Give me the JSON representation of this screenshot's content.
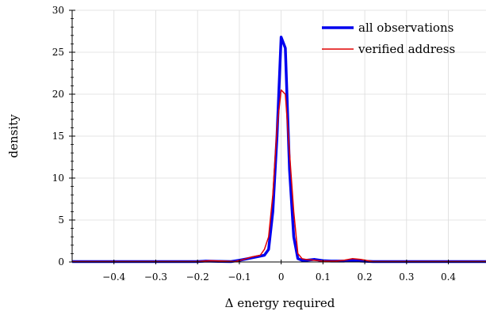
{
  "chart_data": {
    "type": "line",
    "xlabel": "Δ energy required",
    "ylabel": "density",
    "xlim": [
      -0.5,
      0.49
    ],
    "ylim": [
      0,
      30
    ],
    "x_ticks": [
      -0.4,
      -0.3,
      -0.2,
      -0.1,
      0,
      0.1,
      0.2,
      0.3,
      0.4
    ],
    "x_tick_labels": [
      "−0.4",
      "−0.3",
      "−0.2",
      "−0.1",
      "0",
      "0.1",
      "0.2",
      "0.3",
      "0.4"
    ],
    "y_ticks": [
      0,
      5,
      10,
      15,
      20,
      25,
      30
    ],
    "y_tick_labels": [
      "0",
      "5",
      "10",
      "15",
      "20",
      "25",
      "30"
    ],
    "grid": true,
    "legend_position": "top-right",
    "series": [
      {
        "name": "all observations",
        "color": "#0000ee",
        "x": [
          -0.5,
          -0.2,
          -0.18,
          -0.15,
          -0.12,
          -0.1,
          -0.08,
          -0.06,
          -0.04,
          -0.03,
          -0.02,
          -0.01,
          0,
          0.01,
          0.02,
          0.03,
          0.04,
          0.05,
          0.06,
          0.08,
          0.1,
          0.12,
          0.15,
          0.17,
          0.19,
          0.22,
          0.49
        ],
        "y": [
          0.05,
          0.05,
          0.1,
          0.08,
          0.05,
          0.2,
          0.4,
          0.6,
          0.8,
          1.5,
          6,
          15,
          26.8,
          25.5,
          11,
          3,
          0.4,
          0.2,
          0.2,
          0.3,
          0.15,
          0.1,
          0.1,
          0.2,
          0.1,
          0.05,
          0.05
        ]
      },
      {
        "name": "verified address",
        "color": "#e00000",
        "x": [
          -0.5,
          -0.2,
          -0.17,
          -0.14,
          -0.11,
          -0.09,
          -0.07,
          -0.05,
          -0.04,
          -0.03,
          -0.02,
          -0.01,
          0,
          0.01,
          0.02,
          0.03,
          0.04,
          0.05,
          0.06,
          0.08,
          0.1,
          0.13,
          0.15,
          0.17,
          0.19,
          0.22,
          0.49
        ],
        "y": [
          0.05,
          0.05,
          0.15,
          0.1,
          0.05,
          0.3,
          0.6,
          0.8,
          1.5,
          3,
          8,
          16,
          20.5,
          20,
          13,
          6,
          1,
          0.4,
          0.3,
          0.2,
          0.1,
          0.1,
          0.2,
          0.4,
          0.3,
          0.05,
          0.05
        ]
      }
    ]
  }
}
